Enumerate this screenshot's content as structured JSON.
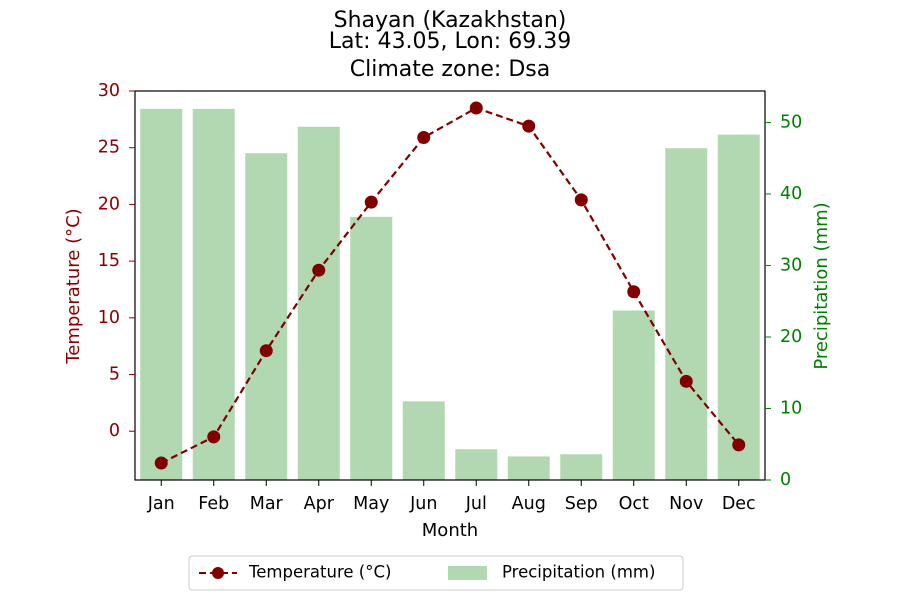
{
  "chart_data": {
    "type": "bar+line",
    "title_lines": [
      "Shayan (Kazakhstan)",
      "Lat: 43.05, Lon: 69.39",
      "Climate zone: Dsa"
    ],
    "xlabel": "Month",
    "y_left_label": "Temperature (°C)",
    "y_right_label": "Precipitation (mm)",
    "categories": [
      "Jan",
      "Feb",
      "Mar",
      "Apr",
      "May",
      "Jun",
      "Jul",
      "Aug",
      "Sep",
      "Oct",
      "Nov",
      "Dec"
    ],
    "y_left": {
      "range": [
        -4.3,
        30
      ],
      "ticks": [
        0,
        5,
        10,
        15,
        20,
        25,
        30
      ]
    },
    "y_right": {
      "range": [
        0,
        54.4
      ],
      "ticks": [
        0,
        10,
        20,
        30,
        40,
        50
      ]
    },
    "series": [
      {
        "name": "Temperature (°C)",
        "kind": "line",
        "axis": "left",
        "color": "#800000",
        "style": "dashed",
        "marker": "circle",
        "values": [
          -2.8,
          -0.5,
          7.1,
          14.2,
          20.2,
          25.9,
          28.5,
          26.9,
          20.4,
          12.3,
          4.4,
          -1.2
        ]
      },
      {
        "name": "Precipitation (mm)",
        "kind": "bar",
        "axis": "right",
        "color": "#b2d8b2",
        "values": [
          51.9,
          51.9,
          45.7,
          49.4,
          36.8,
          11.0,
          4.3,
          3.3,
          3.6,
          23.7,
          46.4,
          48.3
        ]
      }
    ],
    "legend": {
      "placement": "bottom-center",
      "ncol": 2
    },
    "colors": {
      "left_axis": "#8b0000",
      "right_axis": "#008000"
    },
    "grid": false
  }
}
